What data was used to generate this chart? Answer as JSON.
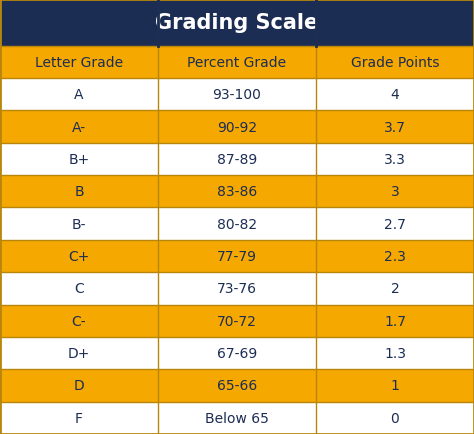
{
  "title": "Grading Scale",
  "title_bg": "#1c2d54",
  "title_color": "#ffffff",
  "header_bg": "#f5a800",
  "row_gold": "#f5a800",
  "row_white": "#ffffff",
  "text_dark": "#1c2d54",
  "border_color": "#b8860b",
  "columns": [
    "Letter Grade",
    "Percent Grade",
    "Grade Points"
  ],
  "rows": [
    [
      "A",
      "93-100",
      "4",
      false
    ],
    [
      "A-",
      "90-92",
      "3.7",
      true
    ],
    [
      "B+",
      "87-89",
      "3.3",
      false
    ],
    [
      "B",
      "83-86",
      "3",
      true
    ],
    [
      "B-",
      "80-82",
      "2.7",
      false
    ],
    [
      "C+",
      "77-79",
      "2.3",
      true
    ],
    [
      "C",
      "73-76",
      "2",
      false
    ],
    [
      "C-",
      "70-72",
      "1.7",
      true
    ],
    [
      "D+",
      "67-69",
      "1.3",
      false
    ],
    [
      "D",
      "65-66",
      "1",
      true
    ],
    [
      "F",
      "Below 65",
      "0",
      false
    ]
  ],
  "figsize": [
    4.74,
    4.35
  ],
  "dpi": 100,
  "title_fontsize": 15,
  "header_fontsize": 10,
  "cell_fontsize": 10
}
